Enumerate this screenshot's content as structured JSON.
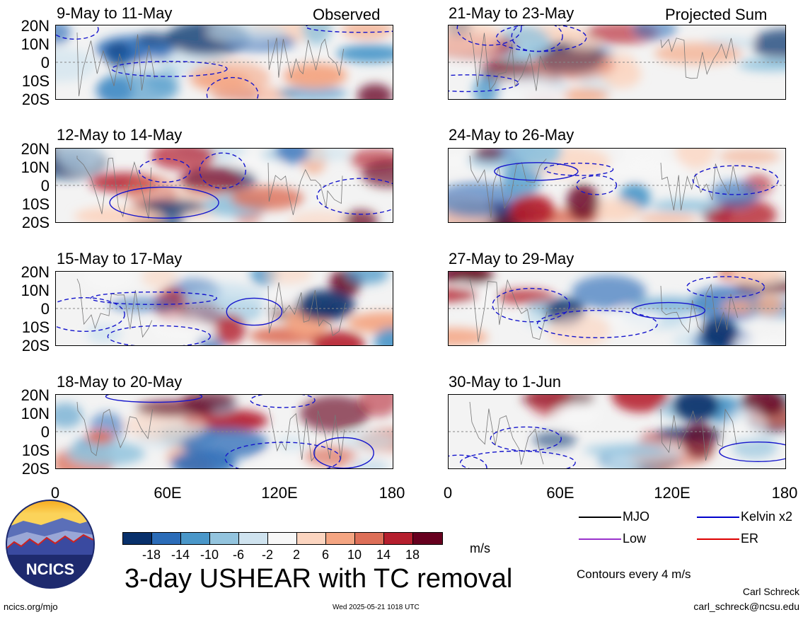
{
  "panels": [
    {
      "title": "9-May to 11-May",
      "corner": "Observed",
      "pattern": 0
    },
    {
      "title": "12-May to 14-May",
      "corner": "",
      "pattern": 1
    },
    {
      "title": "15-May to 17-May",
      "corner": "",
      "pattern": 2
    },
    {
      "title": "18-May to 20-May",
      "corner": "",
      "pattern": 3
    },
    {
      "title": "21-May to 23-May",
      "corner": "Projected Sum",
      "pattern": 4
    },
    {
      "title": "24-May to 26-May",
      "corner": "",
      "pattern": 5
    },
    {
      "title": "27-May to 29-May",
      "corner": "",
      "pattern": 6
    },
    {
      "title": "30-May to 1-Jun",
      "corner": "",
      "pattern": 7
    }
  ],
  "lat_labels": [
    "20N",
    "10N",
    "0",
    "10S",
    "20S"
  ],
  "lon_labels": [
    "0",
    "60E",
    "120E",
    "180"
  ],
  "colorbar": {
    "colors": [
      "#08306b",
      "#2b6cb8",
      "#4a97c9",
      "#93c4de",
      "#cfe3ef",
      "#f7f7f7",
      "#fcd5c0",
      "#f4a582",
      "#dd6f58",
      "#b51f2e",
      "#67001f"
    ],
    "labels": [
      "-18",
      "-14",
      "-10",
      "-6",
      "-2",
      "2",
      "6",
      "10",
      "14",
      "18"
    ],
    "units": "m/s"
  },
  "legend": [
    {
      "label": "MJO",
      "color": "#000000"
    },
    {
      "label": "Kelvin x2",
      "color": "#0000cc"
    },
    {
      "label": "Low",
      "color": "#9932cc"
    },
    {
      "label": "ER",
      "color": "#dd0000"
    }
  ],
  "contours_note": "Contours every 4 m/s",
  "main_title": "3-day USHEAR with TC removal",
  "logo_text": "NCICS",
  "footer": {
    "left": "ncics.org/mjo",
    "center": "Wed 2025-05-21 1018 UTC",
    "author": "Carl Schreck",
    "email": "carl_schreck@ncsu.edu"
  }
}
